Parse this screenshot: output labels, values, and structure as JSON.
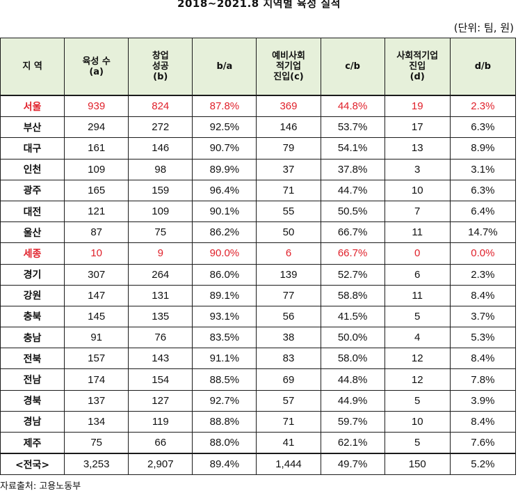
{
  "title": "2018~2021.8 지역별 육성 실적",
  "unit": "(단위: 팀, 원)",
  "columns": [
    {
      "lines": [
        "지 역"
      ]
    },
    {
      "lines": [
        "육성 수",
        "(a)"
      ]
    },
    {
      "lines": [
        "창업",
        "성공",
        "(b)"
      ]
    },
    {
      "lines": [
        "b/a"
      ]
    },
    {
      "lines": [
        "예비사회",
        "적기업",
        "진입(c)"
      ]
    },
    {
      "lines": [
        "c/b"
      ]
    },
    {
      "lines": [
        "사회적기업",
        "진입",
        "(d)"
      ]
    },
    {
      "lines": [
        "d/b"
      ]
    }
  ],
  "rows": [
    {
      "region": "서울",
      "a": "939",
      "b": "824",
      "ba": "87.8%",
      "c": "369",
      "cb": "44.8%",
      "d": "19",
      "db": "2.3%",
      "highlight": true
    },
    {
      "region": "부산",
      "a": "294",
      "b": "272",
      "ba": "92.5%",
      "c": "146",
      "cb": "53.7%",
      "d": "17",
      "db": "6.3%"
    },
    {
      "region": "대구",
      "a": "161",
      "b": "146",
      "ba": "90.7%",
      "c": "79",
      "cb": "54.1%",
      "d": "13",
      "db": "8.9%"
    },
    {
      "region": "인천",
      "a": "109",
      "b": "98",
      "ba": "89.9%",
      "c": "37",
      "cb": "37.8%",
      "d": "3",
      "db": "3.1%"
    },
    {
      "region": "광주",
      "a": "165",
      "b": "159",
      "ba": "96.4%",
      "c": "71",
      "cb": "44.7%",
      "d": "10",
      "db": "6.3%"
    },
    {
      "region": "대전",
      "a": "121",
      "b": "109",
      "ba": "90.1%",
      "c": "55",
      "cb": "50.5%",
      "d": "7",
      "db": "6.4%"
    },
    {
      "region": "울산",
      "a": "87",
      "b": "75",
      "ba": "86.2%",
      "c": "50",
      "cb": "66.7%",
      "d": "11",
      "db": "14.7%"
    },
    {
      "region": "세종",
      "a": "10",
      "b": "9",
      "ba": "90.0%",
      "c": "6",
      "cb": "66.7%",
      "d": "0",
      "db": "0.0%",
      "highlight": true
    },
    {
      "region": "경기",
      "a": "307",
      "b": "264",
      "ba": "86.0%",
      "c": "139",
      "cb": "52.7%",
      "d": "6",
      "db": "2.3%"
    },
    {
      "region": "강원",
      "a": "147",
      "b": "131",
      "ba": "89.1%",
      "c": "77",
      "cb": "58.8%",
      "d": "11",
      "db": "8.4%"
    },
    {
      "region": "충북",
      "a": "145",
      "b": "135",
      "ba": "93.1%",
      "c": "56",
      "cb": "41.5%",
      "d": "5",
      "db": "3.7%"
    },
    {
      "region": "충남",
      "a": "91",
      "b": "76",
      "ba": "83.5%",
      "c": "38",
      "cb": "50.0%",
      "d": "4",
      "db": "5.3%"
    },
    {
      "region": "전북",
      "a": "157",
      "b": "143",
      "ba": "91.1%",
      "c": "83",
      "cb": "58.0%",
      "d": "12",
      "db": "8.4%"
    },
    {
      "region": "전남",
      "a": "174",
      "b": "154",
      "ba": "88.5%",
      "c": "69",
      "cb": "44.8%",
      "d": "12",
      "db": "7.8%"
    },
    {
      "region": "경북",
      "a": "137",
      "b": "127",
      "ba": "92.7%",
      "c": "57",
      "cb": "44.9%",
      "d": "5",
      "db": "3.9%"
    },
    {
      "region": "경남",
      "a": "134",
      "b": "119",
      "ba": "88.8%",
      "c": "71",
      "cb": "59.7%",
      "d": "10",
      "db": "8.4%"
    },
    {
      "region": "제주",
      "a": "75",
      "b": "66",
      "ba": "88.0%",
      "c": "41",
      "cb": "62.1%",
      "d": "5",
      "db": "7.6%"
    }
  ],
  "total": {
    "region": "<전국>",
    "a": "3,253",
    "b": "2,907",
    "ba": "89.4%",
    "c": "1,444",
    "cb": "49.7%",
    "d": "150",
    "db": "5.2%"
  },
  "source": "자료출처: 고용노동부",
  "colors": {
    "highlight": "#e0202a",
    "header_bg": "#e6f0da",
    "border": "#1a1a1a"
  }
}
